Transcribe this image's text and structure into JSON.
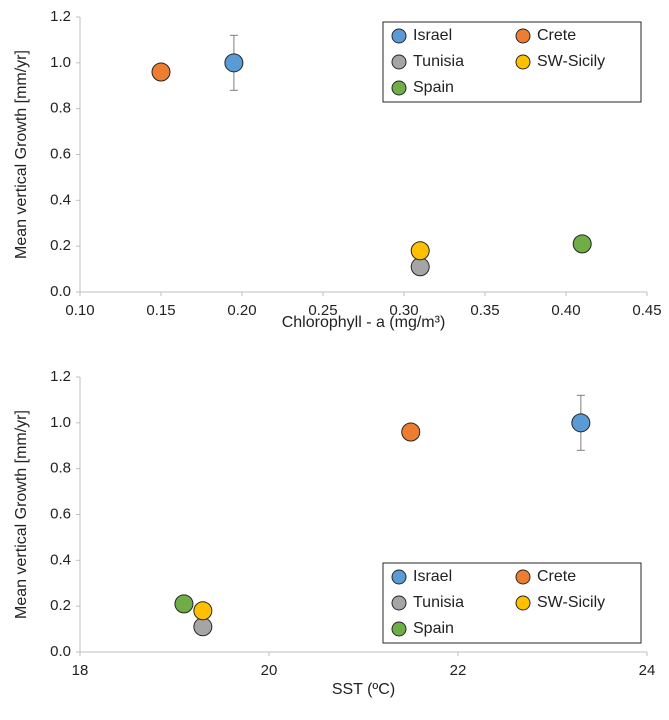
{
  "chart_data": [
    {
      "type": "scatter",
      "x_label": "Chlorophyll - a (mg/m³)",
      "y_label": "Mean vertical Growth [mm/yr]",
      "xlim": [
        0.1,
        0.45
      ],
      "xticks": [
        {
          "value": 0.1,
          "label": "0.10"
        },
        {
          "value": 0.15,
          "label": "0.15"
        },
        {
          "value": 0.2,
          "label": "0.20"
        },
        {
          "value": 0.25,
          "label": "0.25"
        },
        {
          "value": 0.3,
          "label": "0.30"
        },
        {
          "value": 0.35,
          "label": "0.35"
        },
        {
          "value": 0.4,
          "label": "0.40"
        },
        {
          "value": 0.45,
          "label": "0.45"
        }
      ],
      "ylim": [
        0,
        1.2
      ],
      "yticks": [
        {
          "value": 0,
          "label": "0.0"
        },
        {
          "value": 0.2,
          "label": "0.2"
        },
        {
          "value": 0.4,
          "label": "0.4"
        },
        {
          "value": 0.6,
          "label": "0.6"
        },
        {
          "value": 0.8,
          "label": "0.8"
        },
        {
          "value": 1,
          "label": "1.0"
        },
        {
          "value": 1.2,
          "label": "1.2"
        }
      ],
      "legend": "upper right",
      "grid": false,
      "series": [
        {
          "name": "Israel",
          "color": "#5b9bd5",
          "x": [
            0.195
          ],
          "values": [
            1.0
          ],
          "errors": [
            0.12
          ]
        },
        {
          "name": "Crete",
          "color": "#ed7d31",
          "x": [
            0.15
          ],
          "values": [
            0.96
          ]
        },
        {
          "name": "Tunisia",
          "color": "#a5a5a5",
          "x": [
            0.31
          ],
          "values": [
            0.11
          ]
        },
        {
          "name": "SW-Sicily",
          "color": "#ffc000",
          "x": [
            0.31
          ],
          "values": [
            0.18
          ]
        },
        {
          "name": "Spain",
          "color": "#70ad47",
          "x": [
            0.41
          ],
          "values": [
            0.21
          ]
        }
      ]
    },
    {
      "type": "scatter",
      "x_label": "SST (ºC)",
      "y_label": "Mean vertical Growth [mm/yr]",
      "xlim": [
        18,
        24
      ],
      "xticks": [
        18,
        20,
        22,
        24
      ],
      "ylim": [
        0,
        1.2
      ],
      "yticks": [
        {
          "value": 0,
          "label": "0.0"
        },
        {
          "value": 0.2,
          "label": "0.2"
        },
        {
          "value": 0.4,
          "label": "0.4"
        },
        {
          "value": 0.6,
          "label": "0.6"
        },
        {
          "value": 0.8,
          "label": "0.8"
        },
        {
          "value": 1,
          "label": "1.0"
        },
        {
          "value": 1.2,
          "label": "1.2"
        }
      ],
      "legend": "lower right",
      "grid": false,
      "series": [
        {
          "name": "Israel",
          "color": "#5b9bd5",
          "x": [
            23.3
          ],
          "values": [
            1.0
          ],
          "errors": [
            0.12
          ]
        },
        {
          "name": "Crete",
          "color": "#ed7d31",
          "x": [
            21.5
          ],
          "values": [
            0.96
          ]
        },
        {
          "name": "Tunisia",
          "color": "#a5a5a5",
          "x": [
            19.3
          ],
          "values": [
            0.11
          ]
        },
        {
          "name": "SW-Sicily",
          "color": "#ffc000",
          "x": [
            19.3
          ],
          "values": [
            0.18
          ]
        },
        {
          "name": "Spain",
          "color": "#70ad47",
          "x": [
            19.1
          ],
          "values": [
            0.21
          ]
        }
      ]
    }
  ]
}
